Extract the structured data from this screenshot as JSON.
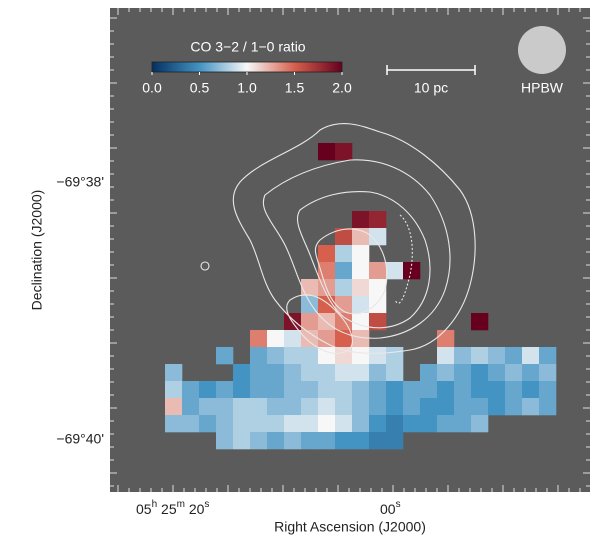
{
  "chart_data": {
    "type": "heatmap",
    "colorbar_title": "CO 3−2 / 1−0 ratio",
    "zlim": [
      0,
      2
    ],
    "zticks": [
      {
        "value": 0,
        "label": "0.0"
      },
      {
        "value": 0.5,
        "label": "0.5"
      },
      {
        "value": 1,
        "label": "1.0"
      },
      {
        "value": 1.5,
        "label": "1.5"
      },
      {
        "value": 2,
        "label": "2.0"
      }
    ],
    "cmap": [
      "#053061",
      "#4393c3",
      "#f7f7f7",
      "#d6604d",
      "#67001f"
    ],
    "scale_bar_label": "10 pc",
    "beam_label": "HPBW",
    "xlabel": "Right Ascension (J2000)",
    "ylabel": "Declination (J2000)",
    "x_tick_labels": [
      [
        "05",
        "h",
        " 25",
        "m",
        " 20",
        "s"
      ],
      [
        "00",
        "s"
      ]
    ],
    "y_tick_labels": [
      "−69°38'",
      "−69°40'"
    ],
    "z": [
      [
        null,
        null,
        null,
        null,
        null,
        null,
        null,
        null,
        null,
        2.0,
        1.9,
        null,
        null,
        null,
        null,
        null,
        null,
        null,
        null,
        null,
        null,
        null,
        null
      ],
      [
        null,
        null,
        null,
        null,
        null,
        null,
        null,
        null,
        null,
        null,
        null,
        null,
        null,
        null,
        null,
        null,
        null,
        null,
        null,
        null,
        null,
        null,
        null
      ],
      [
        null,
        null,
        null,
        null,
        null,
        null,
        null,
        null,
        null,
        null,
        null,
        null,
        null,
        null,
        null,
        null,
        null,
        null,
        null,
        null,
        null,
        null,
        null
      ],
      [
        null,
        null,
        null,
        null,
        null,
        null,
        null,
        null,
        null,
        null,
        null,
        null,
        null,
        null,
        null,
        null,
        null,
        null,
        null,
        null,
        null,
        null,
        null
      ],
      [
        null,
        null,
        null,
        null,
        null,
        null,
        null,
        null,
        null,
        null,
        null,
        1.9,
        1.8,
        null,
        null,
        null,
        null,
        null,
        null,
        null,
        null,
        null,
        null
      ],
      [
        null,
        null,
        null,
        null,
        null,
        null,
        null,
        null,
        null,
        null,
        1.6,
        1.2,
        0.9,
        null,
        null,
        null,
        null,
        null,
        null,
        null,
        null,
        null,
        null
      ],
      [
        null,
        null,
        null,
        null,
        null,
        null,
        null,
        null,
        null,
        1.5,
        0.8,
        1.0,
        null,
        null,
        null,
        null,
        null,
        null,
        null,
        null,
        null,
        null,
        null
      ],
      [
        null,
        null,
        null,
        null,
        null,
        null,
        null,
        null,
        null,
        1.4,
        0.6,
        1.0,
        1.3,
        0.9,
        2.0,
        null,
        null,
        null,
        null,
        null,
        null,
        null,
        null
      ],
      [
        null,
        null,
        null,
        null,
        null,
        null,
        null,
        null,
        1.2,
        1.3,
        0.8,
        1.1,
        1.0,
        null,
        null,
        null,
        null,
        null,
        null,
        null,
        null,
        null,
        null
      ],
      [
        null,
        null,
        null,
        null,
        null,
        null,
        null,
        null,
        0.7,
        1.5,
        1.3,
        0.9,
        1.0,
        null,
        null,
        null,
        null,
        null,
        null,
        null,
        null,
        null,
        null
      ],
      [
        null,
        null,
        null,
        null,
        null,
        null,
        null,
        1.9,
        1.3,
        1.2,
        1.4,
        1.0,
        1.6,
        null,
        null,
        null,
        null,
        null,
        2.0,
        null,
        null,
        null,
        null
      ],
      [
        null,
        null,
        null,
        null,
        null,
        1.4,
        1.0,
        0.9,
        1.2,
        1.3,
        1.5,
        1.2,
        null,
        null,
        null,
        null,
        1.4,
        null,
        null,
        null,
        null,
        null,
        null
      ],
      [
        null,
        null,
        null,
        0.6,
        null,
        0.6,
        0.7,
        0.8,
        0.8,
        1.0,
        1.1,
        1.0,
        0.9,
        0.8,
        null,
        null,
        0.9,
        0.7,
        0.8,
        0.7,
        0.6,
        0.9,
        0.6
      ],
      [
        0.7,
        null,
        null,
        null,
        0.5,
        0.6,
        0.6,
        0.7,
        0.8,
        0.8,
        0.9,
        0.9,
        0.7,
        0.8,
        null,
        0.6,
        0.7,
        0.6,
        0.5,
        0.6,
        0.7,
        0.6,
        0.7
      ],
      [
        0.8,
        0.6,
        0.5,
        0.6,
        0.5,
        0.6,
        0.6,
        0.7,
        0.7,
        0.8,
        0.8,
        0.7,
        0.6,
        0.5,
        0.6,
        0.6,
        0.5,
        0.6,
        0.5,
        0.5,
        0.6,
        0.5,
        0.6
      ],
      [
        1.2,
        0.6,
        0.7,
        0.7,
        0.8,
        0.8,
        0.7,
        0.7,
        0.8,
        0.9,
        0.8,
        0.7,
        0.6,
        0.5,
        0.6,
        0.5,
        0.5,
        0.6,
        0.6,
        0.5,
        0.6,
        0.7,
        0.6
      ],
      [
        0.7,
        0.7,
        0.6,
        0.7,
        0.8,
        0.8,
        0.8,
        0.9,
        0.9,
        1.0,
        0.9,
        0.7,
        0.5,
        0.4,
        0.5,
        0.5,
        0.6,
        0.6,
        0.7,
        null,
        null,
        null,
        null
      ],
      [
        null,
        null,
        null,
        0.7,
        0.8,
        0.7,
        0.6,
        0.7,
        0.6,
        0.6,
        0.5,
        0.5,
        0.4,
        0.4,
        null,
        null,
        null,
        null,
        null,
        null,
        null,
        null,
        null
      ]
    ]
  }
}
